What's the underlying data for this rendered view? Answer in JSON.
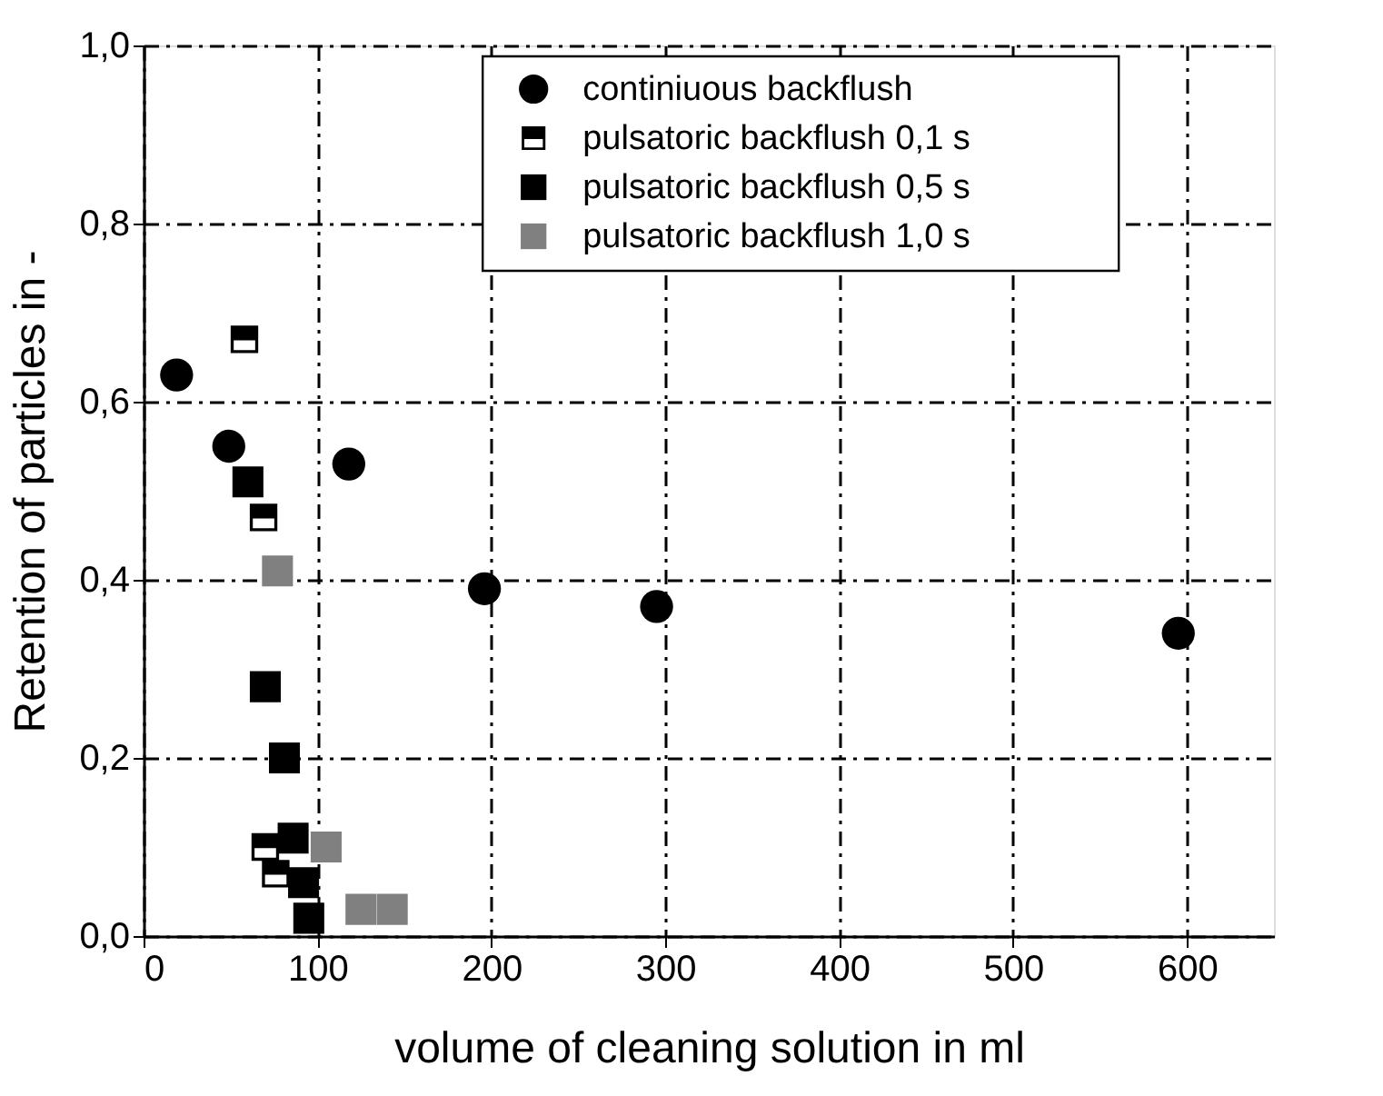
{
  "chart_data": {
    "type": "scatter",
    "xlabel": "volume of cleaning solution in ml",
    "ylabel": "Retention of particles in -",
    "xlim": [
      0,
      650
    ],
    "ylim": [
      0,
      1.0
    ],
    "xticks": [
      0,
      100,
      200,
      300,
      400,
      500,
      600
    ],
    "yticks": [
      {
        "value": 0,
        "label": "0,0"
      },
      {
        "value": 0.2,
        "label": "0,2"
      },
      {
        "value": 0.4,
        "label": "0,4"
      },
      {
        "value": 0.6,
        "label": "0,6"
      },
      {
        "value": 0.8,
        "label": "0,8"
      },
      {
        "value": 1.0,
        "label": "1,0"
      }
    ],
    "grid": true,
    "legend": "top right",
    "series": [
      {
        "name": "continiuous backflush",
        "color": "#000000",
        "marker": "circle",
        "x": [
          19,
          49,
          118,
          196,
          295,
          595
        ],
        "values": [
          0.63,
          0.55,
          0.53,
          0.39,
          0.37,
          0.34
        ]
      },
      {
        "name": "pulsatoric backflush 0,1 s",
        "color": "#000000",
        "marker": "square",
        "x": [
          58,
          69,
          70,
          76
        ],
        "values": [
          0.67,
          0.47,
          0.1,
          0.07
        ]
      },
      {
        "name": "pulsatoric backflush 0,5 s",
        "color": "#000000",
        "marker": "square",
        "x": [
          60,
          70,
          81,
          86,
          92,
          95
        ],
        "values": [
          0.51,
          0.28,
          0.2,
          0.11,
          0.06,
          0.02
        ]
      },
      {
        "name": "pulsatoric backflush 1,0 s",
        "color": "#808080",
        "marker": "square",
        "x": [
          77,
          105,
          125,
          143
        ],
        "values": [
          0.41,
          0.1,
          0.03,
          0.03
        ]
      }
    ]
  }
}
